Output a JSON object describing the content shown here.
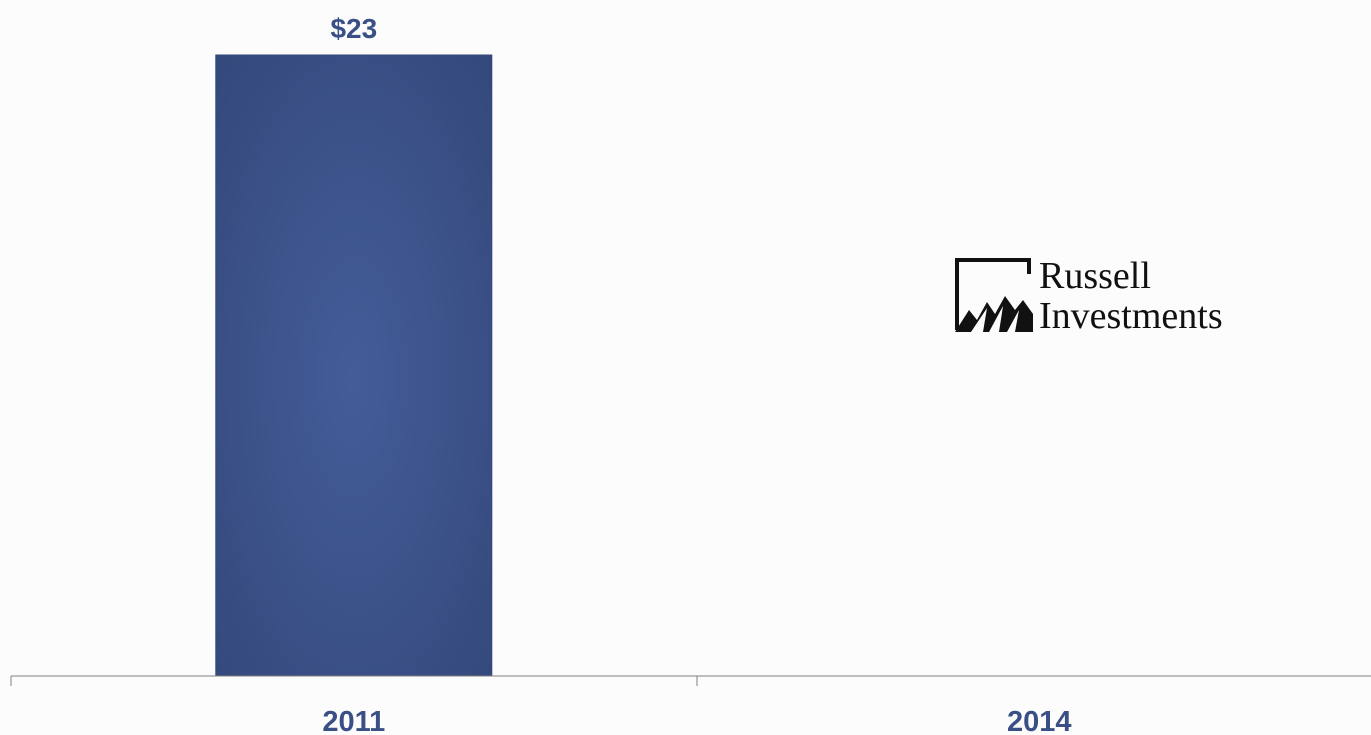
{
  "chart_data": {
    "type": "bar",
    "categories": [
      "2011",
      "2014"
    ],
    "values": [
      23,
      null
    ],
    "value_labels": [
      "$23",
      ""
    ],
    "title": "",
    "xlabel": "",
    "ylabel": "",
    "ylim": [
      0,
      23
    ],
    "grid": false,
    "bar_color": "#3d5592"
  },
  "logo": {
    "line1": "Russell",
    "line2": "Investments"
  },
  "colors": {
    "bar": "#3d5592",
    "bar_edge": "#33477a",
    "label": "#3a4f86",
    "axis": "#7f7f7f"
  }
}
